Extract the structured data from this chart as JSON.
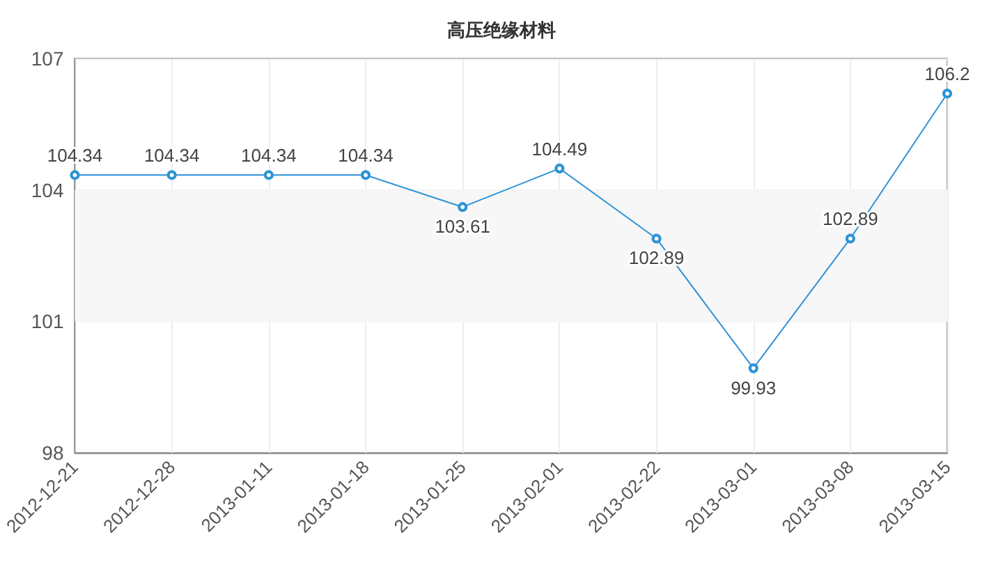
{
  "chart_data": {
    "type": "line",
    "title": "高压绝缘材料",
    "categories": [
      "2012-12-21",
      "2012-12-28",
      "2013-01-11",
      "2013-01-18",
      "2013-01-25",
      "2013-02-01",
      "2013-02-22",
      "2013-03-01",
      "2013-03-08",
      "2013-03-15"
    ],
    "series": [
      {
        "color": "#2b93d6",
        "values": [
          104.34,
          104.34,
          104.34,
          104.34,
          103.61,
          104.49,
          102.89,
          99.93,
          102.89,
          106.2
        ]
      }
    ],
    "bands": [
      {
        "axis": "y",
        "from": 101,
        "to": 104,
        "color": "#f7f7f7"
      }
    ],
    "ylim": [
      98,
      107
    ],
    "yticks": [
      98,
      101,
      104,
      107
    ],
    "grid": true,
    "marker": "circle",
    "line_style": "solid",
    "data_labels": true
  }
}
